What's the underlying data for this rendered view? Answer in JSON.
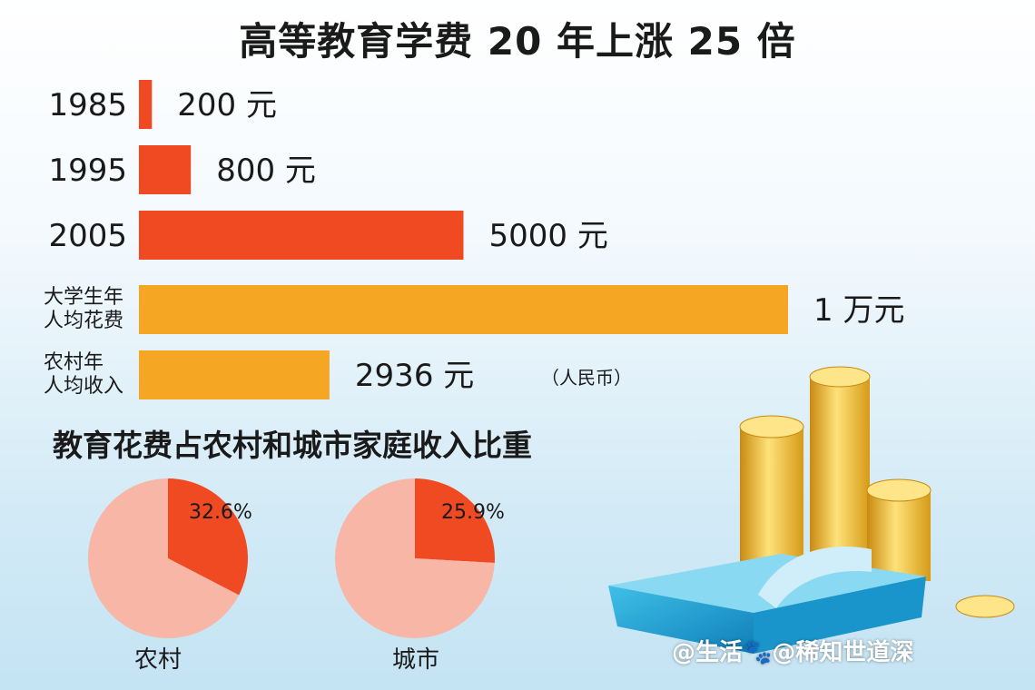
{
  "chart_data": [
    {
      "type": "bar",
      "orientation": "horizontal",
      "title": "高等教育学费 20 年上涨 25 倍",
      "categories": [
        "1985",
        "1995",
        "2005",
        "大学生年\n人均花费",
        "农村年\n人均收入"
      ],
      "values": [
        200,
        800,
        5000,
        10000,
        2936
      ],
      "value_labels": [
        "200 元",
        "800 元",
        "5000 元",
        "1 万元",
        "2936 元"
      ],
      "colors": [
        "#f04a23",
        "#f04a23",
        "#f04a23",
        "#f5a623",
        "#f5a623"
      ],
      "unit_note": "（人民币）",
      "xlim": [
        0,
        10000
      ]
    },
    {
      "type": "pie",
      "group_title": "教育花费占农村和城市家庭收入比重",
      "label": "农村",
      "slices": [
        {
          "value": 32.6,
          "label": "32.6%",
          "color": "#f04a23"
        },
        {
          "value": 67.4,
          "label": "",
          "color": "#f7b6a6"
        }
      ]
    },
    {
      "type": "pie",
      "label": "城市",
      "slices": [
        {
          "value": 25.9,
          "label": "25.9%",
          "color": "#f04a23"
        },
        {
          "value": 74.1,
          "label": "",
          "color": "#f7b6a6"
        }
      ]
    }
  ],
  "watermark": "@生活🐾@稀知世道深"
}
